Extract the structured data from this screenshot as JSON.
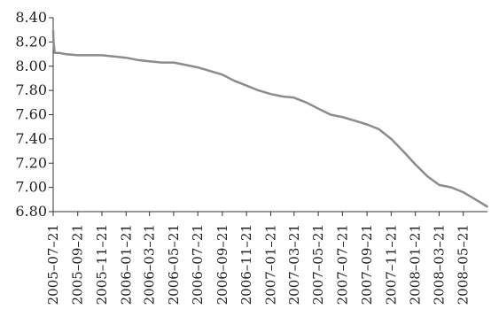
{
  "chart_data": {
    "type": "line",
    "title": "",
    "xlabel": "",
    "ylabel": "",
    "ylim": [
      6.8,
      8.4
    ],
    "xlim": [
      "2005-07-21",
      "2008-07-21"
    ],
    "y_ticks": [
      "8.40",
      "8.20",
      "8.00",
      "7.80",
      "7.60",
      "7.40",
      "7.20",
      "7.00",
      "6.80"
    ],
    "x_ticks": [
      "2005–07–21",
      "2005–09–21",
      "2005–11–21",
      "2006–01–21",
      "2006–03–21",
      "2006–05–21",
      "2006–07–21",
      "2006–09–21",
      "2006–11–21",
      "2007–01–21",
      "2007–03–21",
      "2007–05–21",
      "2007–07–21",
      "2007–09–21",
      "2007–11–21",
      "2008–01–21",
      "2008–03–21",
      "2008–05–21"
    ],
    "grid": false,
    "legend": "none",
    "line_color": "#8c8c8c",
    "series": [
      {
        "x": [
          "2005-07-21",
          "2005-07-22",
          "2005-07-25",
          "2005-08-05",
          "2005-08-21",
          "2005-09-21",
          "2005-10-21",
          "2005-11-21",
          "2005-12-21",
          "2006-01-21",
          "2006-02-21",
          "2006-03-21",
          "2006-04-21",
          "2006-05-21",
          "2006-06-21",
          "2006-07-21",
          "2006-08-21",
          "2006-09-21",
          "2006-10-21",
          "2006-11-21",
          "2006-12-21",
          "2007-01-21",
          "2007-02-21",
          "2007-03-21",
          "2007-04-21",
          "2007-05-21",
          "2007-06-21",
          "2007-07-21",
          "2007-08-21",
          "2007-09-21",
          "2007-10-21",
          "2007-11-21",
          "2007-12-21",
          "2008-01-21",
          "2008-02-21",
          "2008-03-21",
          "2008-04-21",
          "2008-05-21",
          "2008-06-21",
          "2008-07-21"
        ],
        "values": [
          8.3,
          8.2,
          8.11,
          8.11,
          8.1,
          8.09,
          8.09,
          8.09,
          8.08,
          8.07,
          8.05,
          8.04,
          8.03,
          8.03,
          8.01,
          7.99,
          7.96,
          7.93,
          7.88,
          7.84,
          7.8,
          7.77,
          7.75,
          7.74,
          7.7,
          7.65,
          7.6,
          7.58,
          7.55,
          7.52,
          7.48,
          7.4,
          7.3,
          7.19,
          7.09,
          7.02,
          7.0,
          6.96,
          6.9,
          6.84
        ]
      }
    ]
  }
}
